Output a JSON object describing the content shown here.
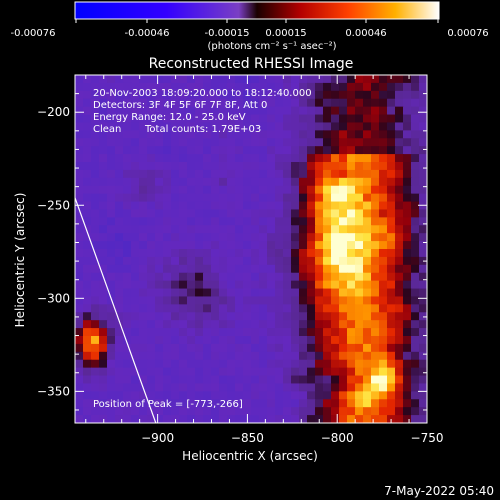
{
  "colorbar": {
    "ticks": [
      "-0.00076",
      "-0.00046",
      "-0.00015",
      "0.00015",
      "0.00046",
      "0.00076"
    ],
    "unit_label": "(photons cm⁻² s⁻¹ asec⁻²)"
  },
  "chart_data": {
    "type": "heatmap",
    "title": "Reconstructed RHESSI Image",
    "xlabel": "Heliocentric X (arcsec)",
    "ylabel": "Heliocentric Y (arcsec)",
    "xlim": [
      -946,
      -750
    ],
    "ylim": [
      -367,
      -180
    ],
    "x_ticks": [
      -900,
      -850,
      -800,
      -750
    ],
    "y_ticks": [
      -200,
      -250,
      -300,
      -350
    ],
    "color_range": [
      -0.00076,
      0.00076
    ],
    "colormap": "rhessi-blue-purple-red-yellow-white",
    "annotations": [
      "20-Nov-2003 18:09:20.000 to 18:12:40.000",
      "Detectors: 3F 4F 5F 6F 7F 8F, Att 0",
      "Energy Range: 12.0 - 25.0 keV",
      "Clean",
      "Total counts: 1.79E+03",
      "Position of Peak = [-773,-266]"
    ],
    "peak": [
      -773,
      -266
    ],
    "limb_line": [
      [
        -946,
        -246
      ],
      [
        -901,
        -367
      ]
    ]
  },
  "footer": {
    "timestamp": "7-May-2022 05:40"
  }
}
